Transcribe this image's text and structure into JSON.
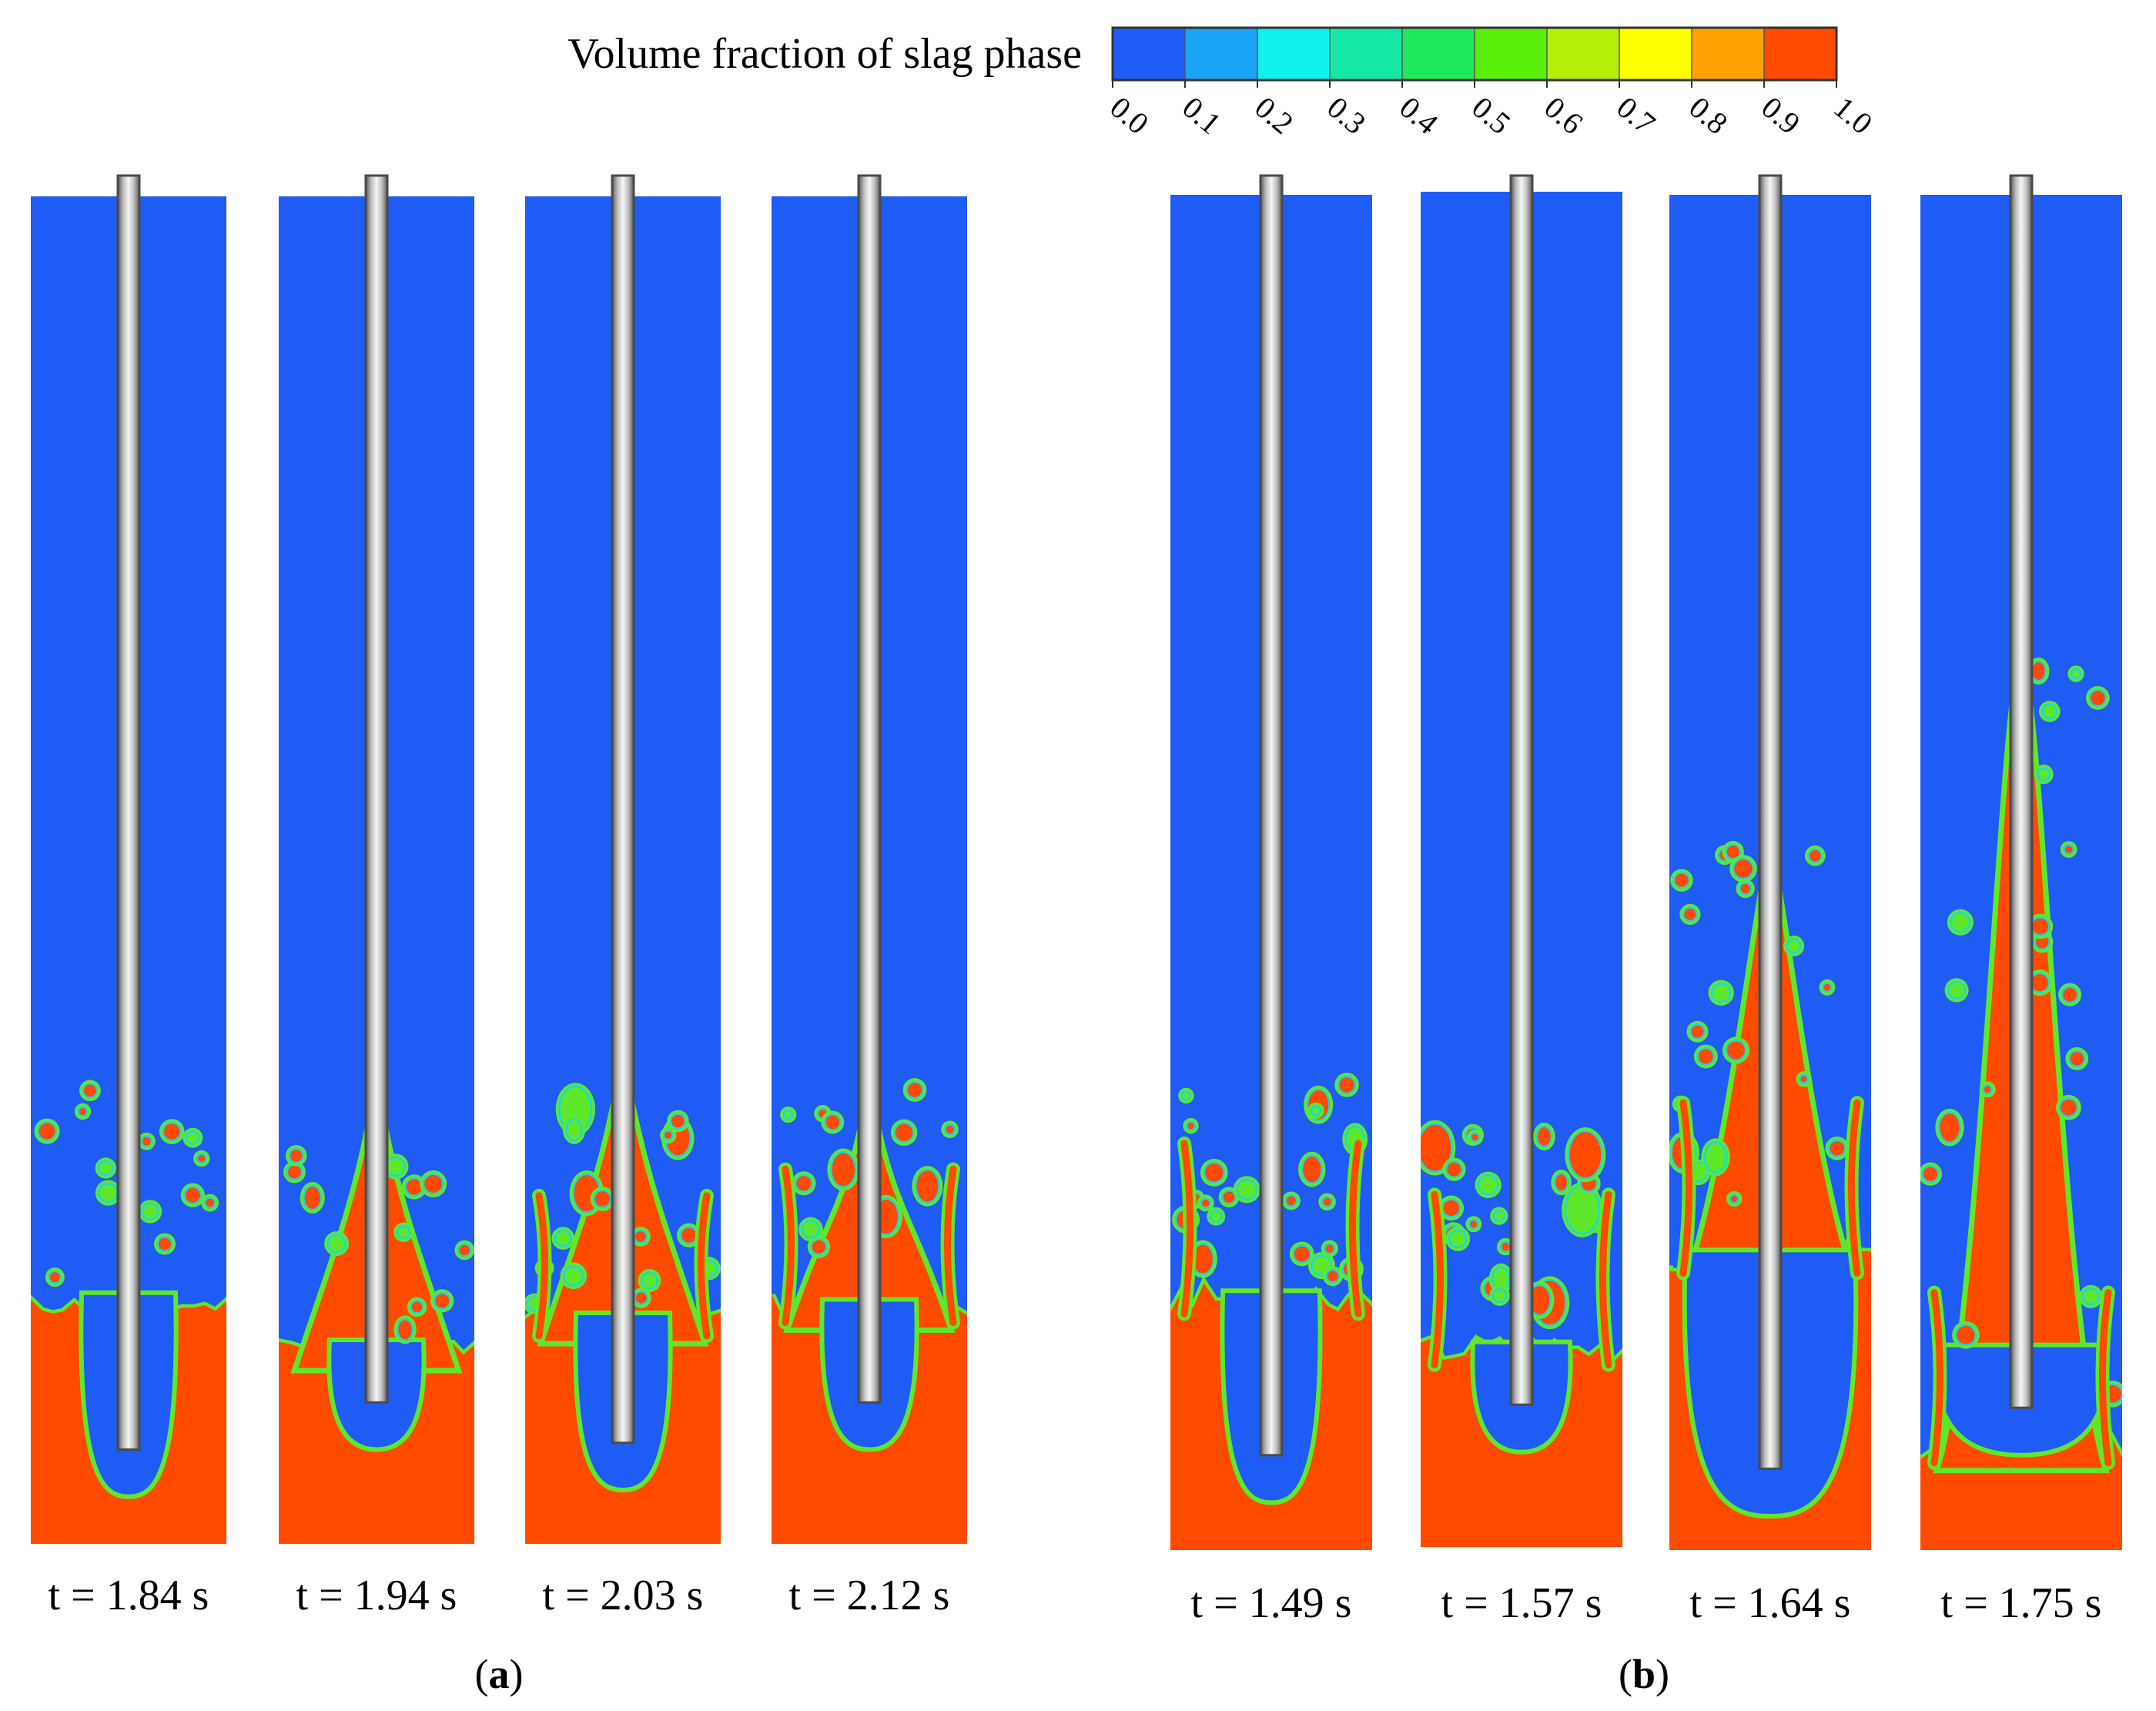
{
  "colorbar": {
    "title": "Volume fraction of slag phase",
    "ticks": [
      "0.0",
      "0.1",
      "0.2",
      "0.3",
      "0.4",
      "0.5",
      "0.6",
      "0.7",
      "0.8",
      "0.9",
      "1.0"
    ],
    "colors": [
      "#1f5bf5",
      "#1aa4f5",
      "#0ff0ef",
      "#15e8a5",
      "#1ee85c",
      "#5aef0a",
      "#b4ef0a",
      "#ffff00",
      "#ffa100",
      "#ff4a00"
    ]
  },
  "colors": {
    "gas": "#1f5bf5",
    "slag": "#ff4a00",
    "interface_outer": "#5fe82a",
    "interface_inner": "#19d6e8",
    "lance_light": "#f2f2f2",
    "lance_dark": "#6e6e6e"
  },
  "groups": [
    {
      "label": "a",
      "panels": [
        {
          "time_label": "t = 1.84 s",
          "slag_level": 0.825,
          "bubble_bottom": 0.965,
          "plume_top": 0.0,
          "splash": 0.56,
          "droplets": 14,
          "seed": 11
        },
        {
          "time_label": "t = 1.94 s",
          "slag_level": 0.86,
          "bubble_bottom": 0.93,
          "plume_top": 0.68,
          "splash": 0.72,
          "droplets": 12,
          "seed": 23
        },
        {
          "time_label": "t = 2.03 s",
          "slag_level": 0.84,
          "bubble_bottom": 0.96,
          "plume_top": 0.66,
          "splash": 0.82,
          "droplets": 16,
          "seed": 37
        },
        {
          "time_label": "t = 2.12 s",
          "slag_level": 0.83,
          "bubble_bottom": 0.93,
          "plume_top": 0.68,
          "splash": 0.9,
          "droplets": 12,
          "seed": 41
        }
      ]
    },
    {
      "label": "b",
      "panels": [
        {
          "time_label": "t = 1.49 s",
          "slag_level": 0.82,
          "bubble_bottom": 0.965,
          "plume_top": 0.0,
          "splash": 1.0,
          "droplets": 22,
          "seed": 53
        },
        {
          "time_label": "t = 1.57 s",
          "slag_level": 0.86,
          "bubble_bottom": 0.93,
          "plume_top": 0.0,
          "splash": 1.0,
          "droplets": 24,
          "seed": 67
        },
        {
          "time_label": "t = 1.64 s",
          "slag_level": 0.79,
          "bubble_bottom": 0.975,
          "plume_top": 0.5,
          "splash": 1.0,
          "droplets": 20,
          "seed": 71
        },
        {
          "time_label": "t = 1.75 s",
          "slag_level": 0.93,
          "bubble_bottom": 0.93,
          "plume_top": 0.36,
          "splash": 1.0,
          "droplets": 20,
          "seed": 89
        }
      ]
    }
  ]
}
